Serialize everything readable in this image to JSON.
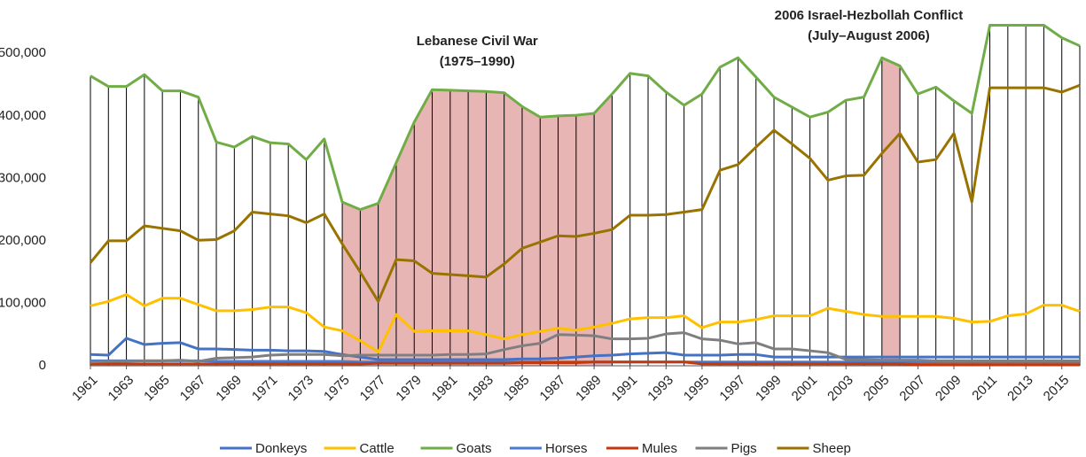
{
  "chart_data": {
    "type": "line",
    "x": [
      1961,
      1962,
      1963,
      1964,
      1965,
      1966,
      1967,
      1968,
      1969,
      1970,
      1971,
      1972,
      1973,
      1974,
      1975,
      1976,
      1977,
      1978,
      1979,
      1980,
      1981,
      1982,
      1983,
      1984,
      1985,
      1986,
      1987,
      1988,
      1989,
      1990,
      1991,
      1992,
      1993,
      1994,
      1995,
      1996,
      1997,
      1998,
      1999,
      2000,
      2001,
      2002,
      2003,
      2004,
      2005,
      2006,
      2007,
      2008,
      2009,
      2010,
      2011,
      2012,
      2013,
      2014,
      2015,
      2016
    ],
    "xlim": [
      1961,
      2016
    ],
    "xticks": [
      1961,
      1963,
      1965,
      1967,
      1969,
      1971,
      1973,
      1975,
      1977,
      1979,
      1981,
      1983,
      1985,
      1987,
      1989,
      1991,
      1993,
      1995,
      1997,
      1999,
      2001,
      2003,
      2005,
      2007,
      2009,
      2011,
      2013,
      2015
    ],
    "ylim": [
      0,
      550000
    ],
    "yticks": [
      0,
      {
        "value": 100000,
        "label": "100,000"
      },
      {
        "value": 200000,
        "label": "200,000"
      },
      {
        "value": 300000,
        "label": "300,000"
      },
      {
        "value": 400000,
        "label": "400,000"
      },
      {
        "value": 500000,
        "label": "500,000"
      }
    ],
    "drop_lines_series": "Goats",
    "annotations": [
      {
        "lines": [
          "Lebanese Civil War",
          "(1975–1990)"
        ],
        "start": 1975,
        "end": 1990,
        "color": "#e8b5b5"
      },
      {
        "lines": [
          "2006 Israel-Hezbollah Conflict",
          "(July–August 2006)"
        ],
        "start": 2005,
        "end": 2006,
        "color": "#e8b5b5"
      }
    ],
    "series": [
      {
        "name": "Donkeys",
        "color": "#4472c4",
        "values": [
          18000,
          17000,
          44000,
          34000,
          36000,
          37000,
          27000,
          27000,
          26000,
          25000,
          25000,
          24000,
          24000,
          23000,
          18000,
          14000,
          10000,
          10000,
          10000,
          10000,
          10000,
          10000,
          10000,
          10000,
          11000,
          11000,
          12000,
          14000,
          16000,
          17000,
          19000,
          20000,
          21000,
          17000,
          17000,
          17000,
          18000,
          18000,
          14000,
          14000,
          14000,
          14000,
          14000,
          14000,
          14000,
          14000,
          14000,
          14000,
          14000,
          14000,
          14000,
          14000,
          14000,
          14000,
          14000,
          14000
        ]
      },
      {
        "name": "Cattle",
        "color": "#ffc000",
        "values": [
          96000,
          103000,
          114000,
          96000,
          108000,
          108000,
          98000,
          88000,
          88000,
          90000,
          94000,
          94000,
          85000,
          62000,
          56000,
          40000,
          22000,
          82000,
          55000,
          56000,
          56000,
          56000,
          50000,
          43000,
          50000,
          55000,
          60000,
          57000,
          62000,
          68000,
          75000,
          77000,
          77000,
          80000,
          61000,
          70000,
          70000,
          74000,
          80000,
          80000,
          80000,
          92000,
          87000,
          82000,
          79000,
          79000,
          79000,
          79000,
          76000,
          70000,
          71000,
          80000,
          83000,
          97000,
          97000,
          87000
        ]
      },
      {
        "name": "Goats",
        "color": "#70ad47",
        "values": [
          464000,
          447000,
          447000,
          466000,
          440000,
          440000,
          430000,
          358000,
          350000,
          367000,
          357000,
          355000,
          330000,
          363000,
          262000,
          250000,
          260000,
          325000,
          390000,
          442000,
          441000,
          440000,
          439000,
          437000,
          415000,
          398000,
          400000,
          401000,
          404000,
          435000,
          468000,
          464000,
          438000,
          417000,
          435000,
          478000,
          493000,
          462000,
          430000,
          414000,
          398000,
          406000,
          425000,
          430000,
          493000,
          480000,
          435000,
          446000,
          424000,
          404000,
          545000,
          545000,
          545000,
          545000,
          525000,
          512000
        ]
      },
      {
        "name": "Horses",
        "color": "#4a7bd0",
        "values": [
          8000,
          8000,
          8000,
          8000,
          8000,
          8000,
          8000,
          7000,
          7000,
          7000,
          7000,
          7000,
          7000,
          7000,
          7000,
          6000,
          6000,
          6000,
          6000,
          6000,
          6000,
          6000,
          6000,
          6000,
          6000,
          6000,
          6000,
          6000,
          6000,
          6000,
          6000,
          6000,
          6000,
          6000,
          6000,
          6000,
          6000,
          6000,
          6000,
          6000,
          6000,
          6000,
          6000,
          6000,
          6000,
          6000,
          6000,
          6000,
          6000,
          6000,
          6000,
          6000,
          6000,
          6000,
          6000,
          6000
        ]
      },
      {
        "name": "Mules",
        "color": "#c0390f",
        "values": [
          3000,
          3000,
          3000,
          3000,
          3000,
          3000,
          3000,
          3000,
          3000,
          3000,
          3000,
          3000,
          3000,
          3000,
          3000,
          3000,
          4000,
          4000,
          4000,
          4000,
          4000,
          4000,
          4000,
          4000,
          5000,
          5000,
          5000,
          5000,
          6000,
          6000,
          6000,
          6000,
          6000,
          6000,
          3000,
          3000,
          3000,
          3000,
          3000,
          3000,
          3000,
          3000,
          3000,
          3000,
          3000,
          3000,
          2000,
          2000,
          2000,
          2000,
          2000,
          2000,
          2000,
          2000,
          2000,
          2000
        ]
      },
      {
        "name": "Pigs",
        "color": "#7f7f7f",
        "values": [
          6000,
          7000,
          7000,
          8000,
          8000,
          9000,
          7000,
          12000,
          13000,
          14000,
          17000,
          18000,
          18000,
          18000,
          16000,
          17000,
          17000,
          17000,
          17000,
          17000,
          18000,
          18000,
          19000,
          26000,
          32000,
          36000,
          50000,
          49000,
          48000,
          43000,
          43000,
          44000,
          51000,
          53000,
          43000,
          41000,
          35000,
          37000,
          27000,
          27000,
          24000,
          21000,
          10000,
          10000,
          9000,
          9000,
          9000,
          8000,
          8000,
          8000,
          8000,
          8000,
          8000,
          8000,
          8000,
          8000
        ]
      },
      {
        "name": "Sheep",
        "color": "#997300",
        "values": [
          165000,
          200000,
          200000,
          224000,
          220000,
          216000,
          201000,
          202000,
          216000,
          246000,
          243000,
          240000,
          229000,
          243000,
          195000,
          150000,
          103000,
          170000,
          168000,
          148000,
          146000,
          144000,
          142000,
          163000,
          188000,
          198000,
          208000,
          207000,
          212000,
          218000,
          241000,
          241000,
          242000,
          246000,
          250000,
          313000,
          322000,
          350000,
          377000,
          355000,
          332000,
          297000,
          304000,
          305000,
          340000,
          372000,
          326000,
          330000,
          372000,
          262000,
          445000,
          445000,
          445000,
          445000,
          438000,
          449000
        ]
      }
    ]
  }
}
